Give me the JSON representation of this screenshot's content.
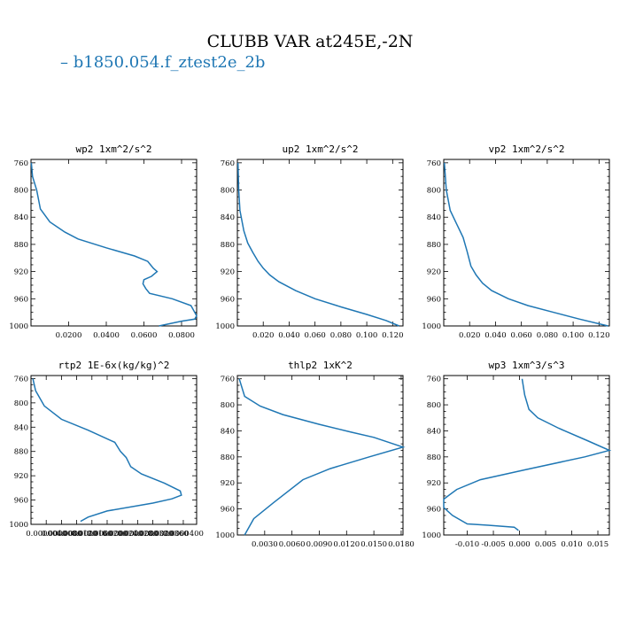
{
  "title": "CLUBB VAR at245E,-2N",
  "legend": {
    "label": "b1850.054.f_ztest2e_2b",
    "color": "#1f77b4"
  },
  "chart_data": [
    {
      "type": "line",
      "title": "wp2   1xm^2/s^2",
      "xlim": [
        0.0,
        0.088
      ],
      "ylim": [
        1000,
        755
      ],
      "xticks": [
        0.02,
        0.04,
        0.06,
        0.08
      ],
      "xtick_labels": [
        "0.0200",
        "0.0400",
        "0.0600",
        "0.0800"
      ],
      "yticks": [
        760,
        800,
        840,
        880,
        920,
        960,
        1000
      ],
      "series": [
        {
          "color": "#1f77b4",
          "x": [
            0.0002,
            0.0008,
            0.003,
            0.005,
            0.01,
            0.018,
            0.025,
            0.04,
            0.055,
            0.062,
            0.065,
            0.067,
            0.064,
            0.06,
            0.0595,
            0.061,
            0.063,
            0.075,
            0.085,
            0.088,
            0.087,
            0.08,
            0.068
          ],
          "y": [
            760,
            780,
            800,
            828,
            847,
            862,
            872,
            885,
            897,
            905,
            915,
            920,
            927,
            932,
            938,
            945,
            952,
            960,
            970,
            985,
            990,
            993,
            1000
          ]
        }
      ]
    },
    {
      "type": "line",
      "title": "up2   1xm^2/s^2",
      "xlim": [
        0.0,
        0.128
      ],
      "ylim": [
        1000,
        755
      ],
      "xticks": [
        0.02,
        0.04,
        0.06,
        0.08,
        0.1,
        0.12
      ],
      "xtick_labels": [
        "0.020",
        "0.040",
        "0.060",
        "0.080",
        "0.100",
        "0.120"
      ],
      "yticks": [
        760,
        800,
        840,
        880,
        920,
        960,
        1000
      ],
      "series": [
        {
          "color": "#1f77b4",
          "x": [
            0.0005,
            0.001,
            0.002,
            0.005,
            0.008,
            0.012,
            0.016,
            0.02,
            0.025,
            0.032,
            0.045,
            0.06,
            0.08,
            0.1,
            0.115,
            0.125
          ],
          "y": [
            760,
            800,
            830,
            860,
            878,
            892,
            905,
            915,
            925,
            935,
            948,
            960,
            972,
            983,
            992,
            1000
          ]
        }
      ]
    },
    {
      "type": "line",
      "title": "vp2   1xm^2/s^2",
      "xlim": [
        0.0,
        0.128
      ],
      "ylim": [
        1000,
        755
      ],
      "xticks": [
        0.02,
        0.04,
        0.06,
        0.08,
        0.1,
        0.12
      ],
      "xtick_labels": [
        "0.020",
        "0.040",
        "0.060",
        "0.080",
        "0.100",
        "0.120"
      ],
      "yticks": [
        760,
        800,
        840,
        880,
        920,
        960,
        1000
      ],
      "series": [
        {
          "color": "#1f77b4",
          "x": [
            0.0005,
            0.002,
            0.005,
            0.01,
            0.015,
            0.018,
            0.021,
            0.025,
            0.03,
            0.037,
            0.05,
            0.065,
            0.085,
            0.105,
            0.127
          ],
          "y": [
            760,
            800,
            830,
            850,
            870,
            890,
            912,
            925,
            937,
            948,
            960,
            970,
            980,
            990,
            1000
          ]
        }
      ]
    },
    {
      "type": "line",
      "title": "rtp2   1E-6x(kg/kg)^2",
      "xlim": [
        0.0,
        4.35e-05
      ],
      "ylim": [
        1000,
        755
      ],
      "xticks": [
        4e-06,
        8e-06,
        1.2e-05,
        1.6e-05,
        2e-05,
        2.4e-05,
        2.8e-05,
        3.2e-05,
        3.6e-05,
        4e-05
      ],
      "xtick_labels": [
        "0.0000040",
        "0.0000080",
        "0.0000120",
        "0.0000160",
        "0.0000200",
        "0.0000240",
        "0.0000280",
        "0.0000320",
        "0.0000360",
        "0.0000400"
      ],
      "yticks": [
        760,
        800,
        840,
        880,
        920,
        960,
        1000
      ],
      "series": [
        {
          "color": "#1f77b4",
          "x": [
            5e-07,
            1.2e-06,
            3.5e-06,
            8e-06,
            1.5e-05,
            2.2e-05,
            2.35e-05,
            2.5e-05,
            2.62e-05,
            2.9e-05,
            3.5e-05,
            3.92e-05,
            3.95e-05,
            3.7e-05,
            3.2e-05,
            2e-05,
            1.5e-05,
            1.3e-05
          ],
          "y": [
            760,
            780,
            805,
            827,
            845,
            865,
            880,
            890,
            905,
            917,
            932,
            945,
            952,
            958,
            965,
            978,
            988,
            995
          ]
        }
      ]
    },
    {
      "type": "line",
      "title": "thlp2   1xK^2",
      "xlim": [
        0.0,
        0.0182
      ],
      "ylim": [
        1000,
        755
      ],
      "xticks": [
        0.003,
        0.006,
        0.009,
        0.012,
        0.015,
        0.018
      ],
      "xtick_labels": [
        "0.0030",
        "0.0060",
        "0.0090",
        "0.0120",
        "0.0150",
        "0.0180"
      ],
      "yticks": [
        760,
        800,
        840,
        880,
        920,
        960,
        1000
      ],
      "series": [
        {
          "color": "#1f77b4",
          "x": [
            0.0002,
            0.0008,
            0.0025,
            0.005,
            0.009,
            0.0125,
            0.015,
            0.0182,
            0.0145,
            0.0102,
            0.0072,
            0.004,
            0.0018,
            0.0008
          ],
          "y": [
            760,
            787,
            802,
            815,
            830,
            842,
            850,
            865,
            880,
            898,
            915,
            950,
            975,
            1000
          ]
        }
      ]
    },
    {
      "type": "line",
      "title": "wp3   1xm^3/s^3",
      "xlim": [
        -0.0145,
        0.0172
      ],
      "ylim": [
        1000,
        755
      ],
      "xticks": [
        -0.01,
        -0.005,
        0.0,
        0.005,
        0.01,
        0.015
      ],
      "xtick_labels": [
        "-0.010",
        "-0.005",
        "0.000",
        "0.005",
        "0.010",
        "0.015"
      ],
      "yticks": [
        760,
        800,
        840,
        880,
        920,
        960,
        1000
      ],
      "series": [
        {
          "color": "#1f77b4",
          "x": [
            0.0005,
            0.001,
            0.0018,
            0.0035,
            0.0075,
            0.013,
            0.0172,
            0.0125,
            0.001,
            -0.0075,
            -0.012,
            -0.0145,
            -0.0145,
            -0.0128,
            -0.01,
            -0.006,
            -0.001,
            -0.0002
          ],
          "y": [
            760,
            785,
            807,
            820,
            836,
            855,
            870,
            880,
            900,
            915,
            930,
            945,
            958,
            970,
            983,
            985,
            988,
            993
          ]
        }
      ]
    }
  ]
}
